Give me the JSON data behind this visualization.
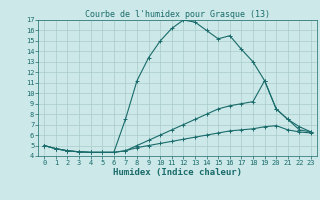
{
  "title": "Courbe de l'humidex pour Grasque (13)",
  "xlabel": "Humidex (Indice chaleur)",
  "bg_color": "#cce8e8",
  "grid_color": "#aacccc",
  "line_color": "#1a6b6b",
  "xlim": [
    -0.5,
    23.5
  ],
  "ylim": [
    4,
    17
  ],
  "xticks": [
    0,
    1,
    2,
    3,
    4,
    5,
    6,
    7,
    8,
    9,
    10,
    11,
    12,
    13,
    14,
    15,
    16,
    17,
    18,
    19,
    20,
    21,
    22,
    23
  ],
  "yticks": [
    4,
    5,
    6,
    7,
    8,
    9,
    10,
    11,
    12,
    13,
    14,
    15,
    16,
    17
  ],
  "line1_x": [
    0,
    1,
    2,
    3,
    4,
    5,
    6,
    7,
    8,
    9,
    10,
    11,
    12,
    13,
    14,
    15,
    16,
    17,
    18,
    19,
    20,
    21,
    22,
    23
  ],
  "line1_y": [
    5.0,
    4.7,
    4.5,
    4.4,
    4.35,
    4.35,
    4.35,
    7.5,
    11.2,
    13.4,
    15.0,
    16.2,
    17.0,
    16.8,
    16.0,
    15.2,
    15.5,
    14.2,
    13.0,
    11.2,
    8.5,
    7.5,
    6.5,
    6.3
  ],
  "line2_x": [
    0,
    1,
    2,
    3,
    4,
    5,
    6,
    7,
    8,
    9,
    10,
    11,
    12,
    13,
    14,
    15,
    16,
    17,
    18,
    19,
    20,
    21,
    22,
    23
  ],
  "line2_y": [
    5.0,
    4.7,
    4.5,
    4.4,
    4.35,
    4.35,
    4.35,
    4.5,
    5.0,
    5.5,
    6.0,
    6.5,
    7.0,
    7.5,
    8.0,
    8.5,
    8.8,
    9.0,
    9.2,
    11.2,
    8.5,
    7.5,
    6.8,
    6.3
  ],
  "line3_x": [
    0,
    1,
    2,
    3,
    4,
    5,
    6,
    7,
    8,
    9,
    10,
    11,
    12,
    13,
    14,
    15,
    16,
    17,
    18,
    19,
    20,
    21,
    22,
    23
  ],
  "line3_y": [
    5.0,
    4.7,
    4.5,
    4.4,
    4.35,
    4.35,
    4.35,
    4.5,
    4.8,
    5.0,
    5.2,
    5.4,
    5.6,
    5.8,
    6.0,
    6.2,
    6.4,
    6.5,
    6.6,
    6.8,
    6.9,
    6.5,
    6.3,
    6.2
  ],
  "marker": "+",
  "markersize": 3.5,
  "linewidth": 0.8,
  "tick_fontsize": 5.0,
  "xlabel_fontsize": 6.5,
  "title_fontsize": 6.0
}
